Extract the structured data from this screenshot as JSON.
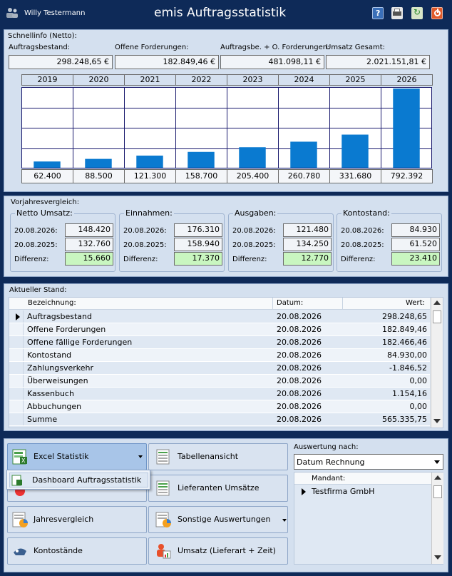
{
  "header": {
    "user_name": "Willy Testermann",
    "app_title": "emis Auftragsstatistik",
    "buttons": [
      "help-icon",
      "print-icon",
      "refresh-icon",
      "power-icon"
    ]
  },
  "quickinfo": {
    "caption": "Schnellinfo (Netto):",
    "fields": [
      {
        "label": "Auftragsbestand:",
        "value": "298.248,65 €"
      },
      {
        "label": "Offene Forderungen:",
        "value": "182.849,46 €"
      },
      {
        "label": "Auftragsbe. + O. Forderungen:",
        "value": "481.098,11 €"
      },
      {
        "label": "Umsatz Gesamt:",
        "value": "2.021.151,81 €"
      }
    ]
  },
  "chart_data": {
    "type": "bar",
    "categories": [
      "2019",
      "2020",
      "2021",
      "2022",
      "2023",
      "2024",
      "2025",
      "2026"
    ],
    "values": [
      62400,
      88500,
      121300,
      158700,
      205400,
      260780,
      331680,
      792392
    ],
    "value_labels": [
      "62.400",
      "88.500",
      "121.300",
      "158.700",
      "205.400",
      "260.780",
      "331.680",
      "792.392"
    ],
    "ylim": [
      0,
      800000
    ],
    "grid": true,
    "bar_color": "#0a7ad0"
  },
  "comparison": {
    "caption": "Vorjahresvergleich:",
    "groups": [
      {
        "title": "Netto Umsatz:",
        "d1": "20.08.2026:",
        "v1": "148.420",
        "d2": "20.08.2025:",
        "v2": "132.760",
        "diff_label": "Differenz:",
        "diff": "15.660"
      },
      {
        "title": "Einnahmen:",
        "d1": "20.08.2026:",
        "v1": "176.310",
        "d2": "20.08.2025:",
        "v2": "158.940",
        "diff_label": "Differenz:",
        "diff": "17.370"
      },
      {
        "title": "Ausgaben:",
        "d1": "20.08.2026:",
        "v1": "121.480",
        "d2": "20.08.2025:",
        "v2": "134.250",
        "diff_label": "Differenz:",
        "diff": "12.770"
      },
      {
        "title": "Kontostand:",
        "d1": "20.08.2026:",
        "v1": "84.930",
        "d2": "20.08.2025:",
        "v2": "61.520",
        "diff_label": "Differenz:",
        "diff": "23.410"
      }
    ]
  },
  "status": {
    "caption": "Aktueller Stand:",
    "columns": [
      "Bezeichnung:",
      "Datum:",
      "Wert:"
    ],
    "rows": [
      {
        "name": "Auftragsbestand",
        "date": "20.08.2026",
        "value": "298.248,65"
      },
      {
        "name": "Offene Forderungen",
        "date": "20.08.2026",
        "value": "182.849,46"
      },
      {
        "name": "Offene fällige Forderungen",
        "date": "20.08.2026",
        "value": "182.466,46"
      },
      {
        "name": "Kontostand",
        "date": "20.08.2026",
        "value": "84.930,00"
      },
      {
        "name": "Zahlungsverkehr",
        "date": "20.08.2026",
        "value": "-1.846,52"
      },
      {
        "name": "Überweisungen",
        "date": "20.08.2026",
        "value": "0,00"
      },
      {
        "name": "Kassenbuch",
        "date": "20.08.2026",
        "value": "1.154,16"
      },
      {
        "name": "Abbuchungen",
        "date": "20.08.2026",
        "value": "0,00"
      },
      {
        "name": "Summe",
        "date": "20.08.2026",
        "value": "565.335,75"
      }
    ]
  },
  "actions": {
    "excel": "Excel Statistik",
    "dropdown_item": "Dashboard Auftragsstatistik",
    "table_view": "Tabellenansicht",
    "supplier_sales": "Lieferanten Umsätze",
    "year_compare": "Jahresvergleich",
    "other_reports": "Sonstige Auswertungen",
    "accounts": "Kontostände",
    "sales_supplier_time": "Umsatz (Lieferart + Zeit)"
  },
  "evaluation": {
    "caption": "Auswertung nach:",
    "selected": "Datum Rechnung",
    "mandant_header": "Mandant:",
    "mandants": [
      "Testfirma GmbH"
    ]
  }
}
